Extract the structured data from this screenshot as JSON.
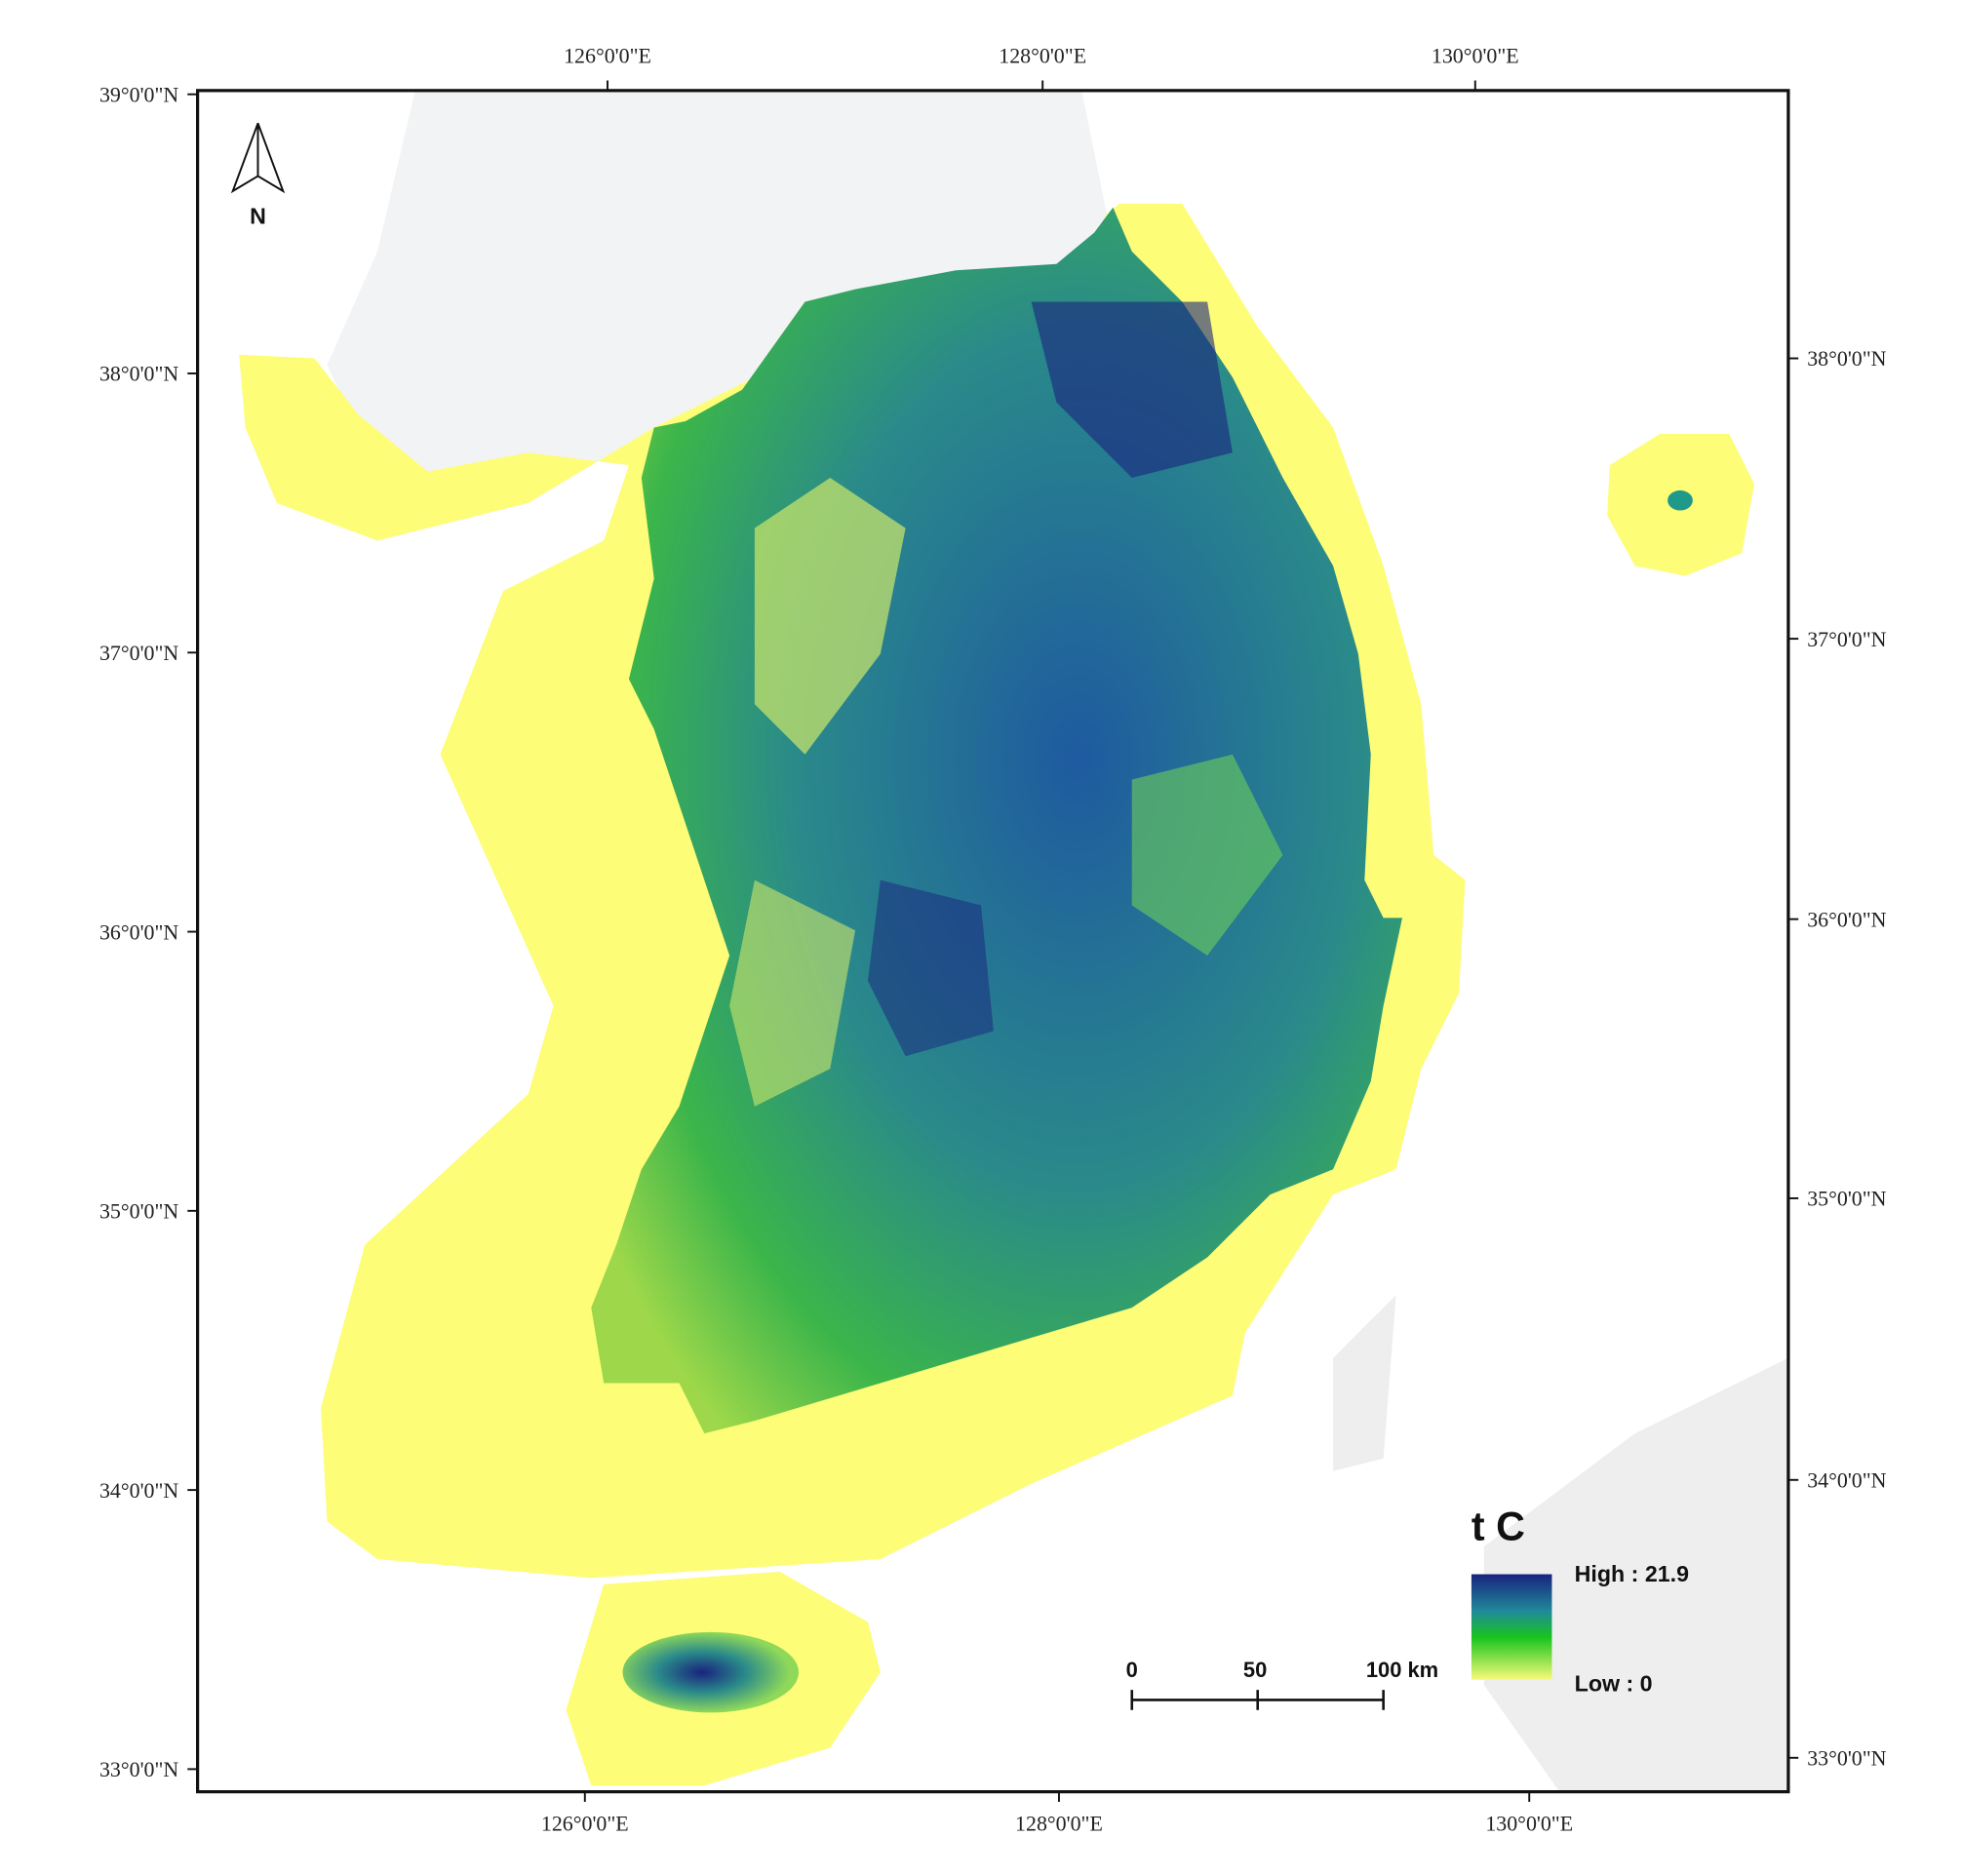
{
  "map": {
    "top_labels": [
      "126°0'0\"E",
      "128°0'0\"E",
      "130°0'0\"E"
    ],
    "bottom_labels": [
      "126°0'0\"E",
      "128°0'0\"E",
      "130°0'0\"E"
    ],
    "left_labels": [
      "39°0'0\"N",
      "38°0'0\"N",
      "37°0'0\"N",
      "36°0'0\"N",
      "35°0'0\"N",
      "34°0'0\"N",
      "33°0'0\"N"
    ],
    "right_labels": [
      "38°0'0\"N",
      "37°0'0\"N",
      "36°0'0\"N",
      "35°0'0\"N",
      "34°0'0\"N",
      "33°0'0\"N"
    ],
    "north": "N",
    "legend": {
      "title": "t C",
      "high": "High : 21.9",
      "low": "Low : 0"
    },
    "scale_bar": [
      "0",
      "50",
      "100 km"
    ]
  }
}
